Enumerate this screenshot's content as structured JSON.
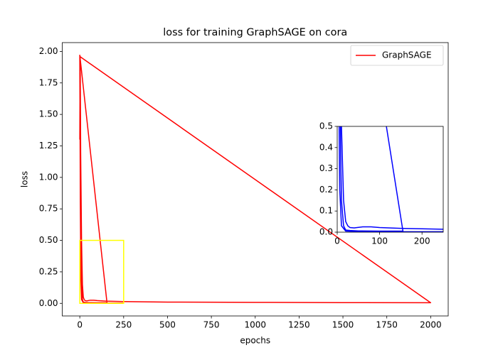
{
  "chart_data": {
    "type": "line",
    "title": "loss for training GraphSAGE on cora",
    "x_label": "epochs",
    "y_label": "loss",
    "x": [
      0,
      2,
      4,
      6,
      8,
      10,
      15,
      20,
      30,
      50,
      100,
      155,
      0,
      5,
      10,
      15,
      20,
      25,
      30,
      40,
      60,
      80,
      100,
      150,
      250,
      500,
      1000,
      1500,
      2000,
      0,
      3,
      6,
      10,
      20,
      50,
      100,
      250
    ],
    "series": [
      {
        "name": "GraphSAGE",
        "color": "#ff0000",
        "values": [
          1.3,
          1.96,
          1.5,
          0.9,
          0.4,
          0.15,
          0.03,
          0.01,
          0.008,
          0.006,
          0.005,
          0.005,
          1.97,
          1.2,
          0.5,
          0.15,
          0.05,
          0.03,
          0.022,
          0.02,
          0.025,
          0.025,
          0.022,
          0.018,
          0.014,
          0.01,
          0.008,
          0.006,
          0.005,
          1.96,
          0.8,
          0.2,
          0.03,
          0.005,
          0.003,
          0.002,
          0.002
        ]
      }
    ],
    "xlim": [
      -100,
      2100
    ],
    "ylim": [
      -0.1,
      2.07
    ],
    "xticks": [
      0,
      250,
      500,
      750,
      1000,
      1250,
      1500,
      1750,
      2000
    ],
    "yticks": [
      {
        "value": 0,
        "label": "0.00"
      },
      {
        "value": 0.25,
        "label": "0.25"
      },
      {
        "value": 0.5,
        "label": "0.50"
      },
      {
        "value": 0.75,
        "label": "0.75"
      },
      {
        "value": 1,
        "label": "1.00"
      },
      {
        "value": 1.25,
        "label": "1.25"
      },
      {
        "value": 1.5,
        "label": "1.50"
      },
      {
        "value": 1.75,
        "label": "1.75"
      },
      {
        "value": 2,
        "label": "2.00"
      }
    ],
    "legend": "upper right",
    "grid": false,
    "zoom_box_color": "#ffff00",
    "inset": {
      "color": "#0000ff",
      "xlim": [
        0,
        250
      ],
      "ylim": [
        0,
        0.5
      ],
      "xticks": [
        0,
        100,
        200
      ],
      "yticks": [
        {
          "value": 0,
          "label": "0.0"
        },
        {
          "value": 0.1,
          "label": "0.1"
        },
        {
          "value": 0.2,
          "label": "0.2"
        },
        {
          "value": 0.3,
          "label": "0.3"
        },
        {
          "value": 0.4,
          "label": "0.4"
        },
        {
          "value": 0.5,
          "label": "0.5"
        }
      ]
    }
  }
}
